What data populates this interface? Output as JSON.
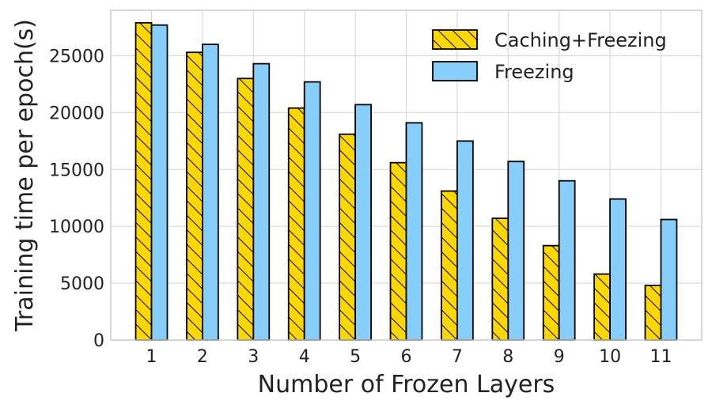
{
  "chart_data": {
    "type": "bar",
    "xlabel": "Number of Frozen Layers",
    "ylabel": "Training time per epoch(s)",
    "categories": [
      "1",
      "2",
      "3",
      "4",
      "5",
      "6",
      "7",
      "8",
      "9",
      "10",
      "11"
    ],
    "ylim": [
      0,
      29000
    ],
    "yticks": [
      "0",
      "5000",
      "10000",
      "15000",
      "20000",
      "25000"
    ],
    "grid": true,
    "legend_position": "top-right",
    "series": [
      {
        "name": "Caching+Freezing",
        "values": [
          27900,
          25300,
          23000,
          20400,
          18100,
          15600,
          13100,
          10700,
          8300,
          5800,
          4800
        ],
        "color": "#FFD700",
        "pattern": "backslash-hatch"
      },
      {
        "name": "Freezing",
        "values": [
          27700,
          26000,
          24300,
          22700,
          20700,
          19100,
          17500,
          15700,
          14000,
          12400,
          10600
        ],
        "color": "#87CEFA",
        "pattern": "none"
      }
    ]
  }
}
